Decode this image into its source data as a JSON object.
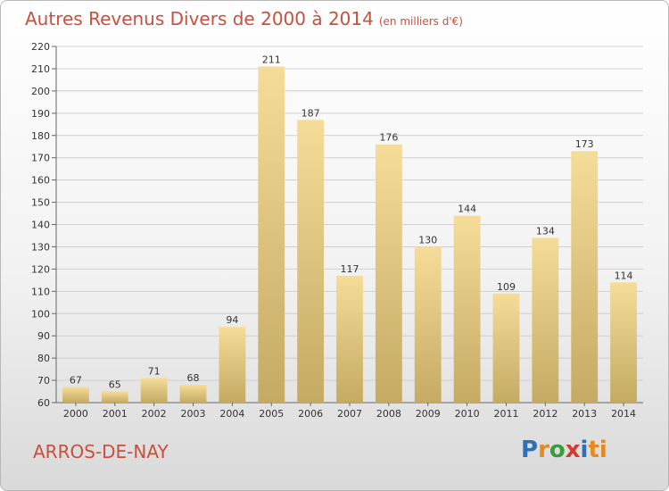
{
  "header": {
    "title": "Autres Revenus Divers de 2000 à 2014",
    "unit": "(en milliers d'€)"
  },
  "footer": {
    "city": "ARROS-DE-NAY",
    "logo": "Proxiti"
  },
  "colors": {
    "title": "#c8503c",
    "bar_top": "#f5dc98",
    "bar_bottom": "#c4aa62",
    "grid": "#cfcfcf"
  },
  "chart_data": {
    "type": "bar",
    "title": "Autres Revenus Divers de 2000 à 2014",
    "subtitle": "(en milliers d'€)",
    "xlabel": "",
    "ylabel": "",
    "categories": [
      "2000",
      "2001",
      "2002",
      "2003",
      "2004",
      "2005",
      "2006",
      "2007",
      "2008",
      "2009",
      "2010",
      "2011",
      "2012",
      "2013",
      "2014"
    ],
    "values": [
      67,
      65,
      71,
      68,
      94,
      211,
      187,
      117,
      176,
      130,
      144,
      109,
      134,
      173,
      114
    ],
    "ylim": [
      60,
      220
    ],
    "yticks": [
      60,
      70,
      80,
      90,
      100,
      110,
      120,
      130,
      140,
      150,
      160,
      170,
      180,
      190,
      200,
      210,
      220
    ],
    "grid": true,
    "legend": "none"
  }
}
